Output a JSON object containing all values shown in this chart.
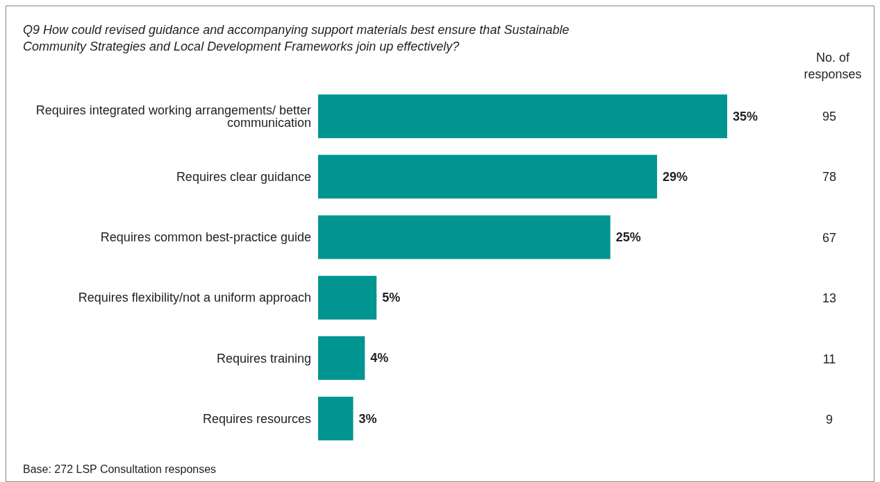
{
  "chart_data": {
    "type": "bar",
    "orientation": "horizontal",
    "title": "Q9 How could revised guidance and accompanying support materials best ensure that Sustainable Community Strategies and Local Development Frameworks join up effectively?",
    "categories": [
      "Requires integrated working arrangements/ better communication",
      "Requires clear guidance",
      "Requires common best-practice guide",
      "Requires flexibility/not a uniform approach",
      "Requires training",
      "Requires resources"
    ],
    "values": [
      35,
      29,
      25,
      5,
      4,
      3
    ],
    "color": "#009590",
    "value_labels": [
      "35%",
      "29%",
      "25%",
      "5%",
      "4%",
      "3%"
    ],
    "annotations": [
      "No. of responses",
      "95",
      "78",
      "67",
      "13",
      "11",
      "9",
      "Base: 272 LSP Consultation responses"
    ],
    "grid": false,
    "legend": false
  }
}
